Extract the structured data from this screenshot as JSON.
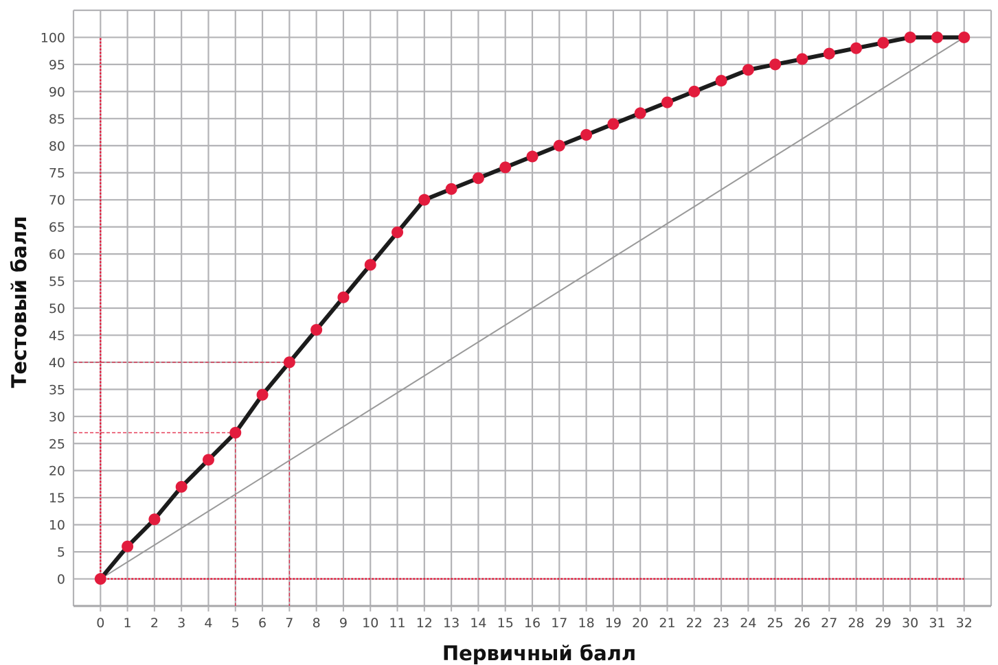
{
  "chart_data": {
    "type": "line",
    "title": "",
    "xlabel": "Первичный балл",
    "ylabel": "Тестовый балл",
    "xlim": [
      -1,
      33
    ],
    "ylim": [
      -5,
      105
    ],
    "x_ticks": [
      0,
      1,
      2,
      3,
      4,
      5,
      6,
      7,
      8,
      9,
      10,
      11,
      12,
      13,
      14,
      15,
      16,
      17,
      18,
      19,
      20,
      21,
      22,
      23,
      24,
      25,
      26,
      27,
      28,
      29,
      30,
      31,
      32
    ],
    "y_ticks": [
      0,
      5,
      10,
      15,
      20,
      25,
      30,
      35,
      40,
      45,
      50,
      55,
      60,
      65,
      70,
      75,
      80,
      85,
      90,
      95,
      100
    ],
    "grid": true,
    "series": [
      {
        "x": [
          0,
          1,
          2,
          3,
          4,
          5,
          6,
          7,
          8,
          9,
          10,
          11,
          12,
          13,
          14,
          15,
          16,
          17,
          18,
          19,
          20,
          21,
          22,
          23,
          24,
          25,
          26,
          27,
          28,
          29,
          30,
          31,
          32
        ],
        "values": [
          0,
          6,
          11,
          17,
          22,
          27,
          34,
          40,
          46,
          52,
          58,
          64,
          70,
          72,
          74,
          76,
          78,
          80,
          82,
          84,
          86,
          88,
          90,
          92,
          94,
          95,
          96,
          97,
          98,
          99,
          100,
          100,
          100
        ],
        "line_color": "#1c1c1c",
        "marker_color": "#e21c3d"
      }
    ],
    "reference_line": {
      "from": [
        0,
        0
      ],
      "to": [
        32,
        100
      ],
      "color": "#999999"
    },
    "guides": [
      {
        "x": 0,
        "y_from": 0,
        "y_to": 100
      },
      {
        "y": 0,
        "x_from": 0,
        "x_to": 32
      },
      {
        "x": 5,
        "y": 27
      },
      {
        "x": 7,
        "y": 40
      }
    ],
    "colors": {
      "grid": "#b3b3b6",
      "guide": "#e21c3d",
      "line": "#1c1c1c",
      "marker": "#e21c3d"
    }
  }
}
